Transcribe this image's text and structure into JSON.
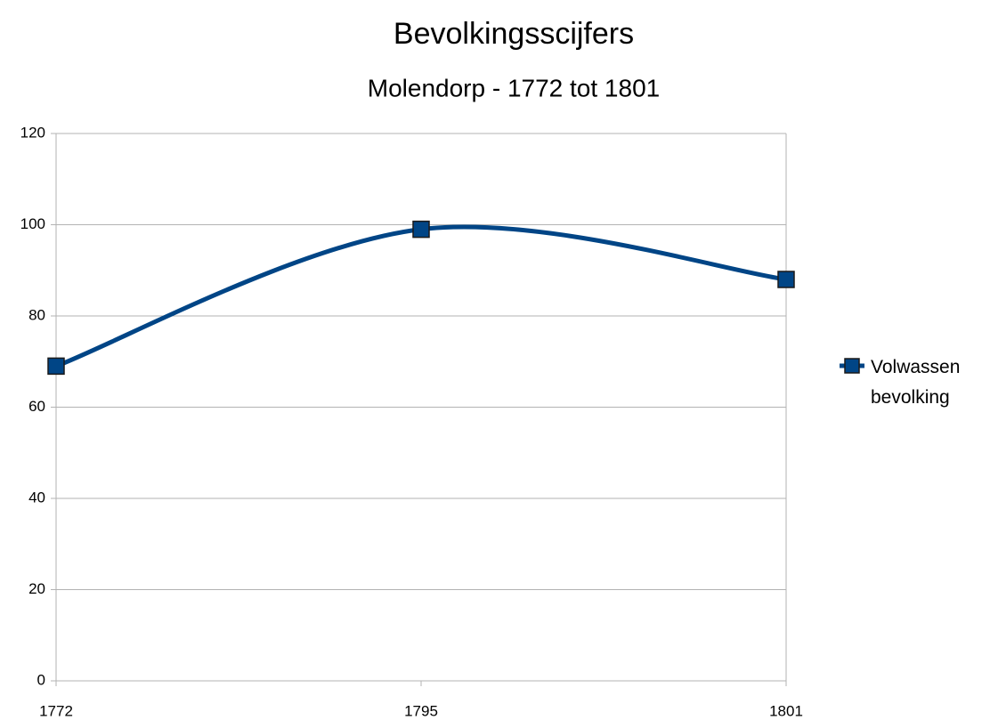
{
  "chart_data": {
    "type": "line",
    "title": "Bevolkingsscijfers",
    "subtitle": "Molendorp - 1772 tot 1801",
    "categories": [
      "1772",
      "1795",
      "1801"
    ],
    "series": [
      {
        "name": "Volwassen bevolking",
        "color": "#004586",
        "values": [
          69,
          99,
          88
        ]
      }
    ],
    "ylim": [
      0,
      120
    ],
    "yticks": [
      0,
      20,
      40,
      60,
      80,
      100,
      120
    ],
    "grid": true,
    "smooth": true,
    "marker": "square",
    "legend": "right"
  }
}
